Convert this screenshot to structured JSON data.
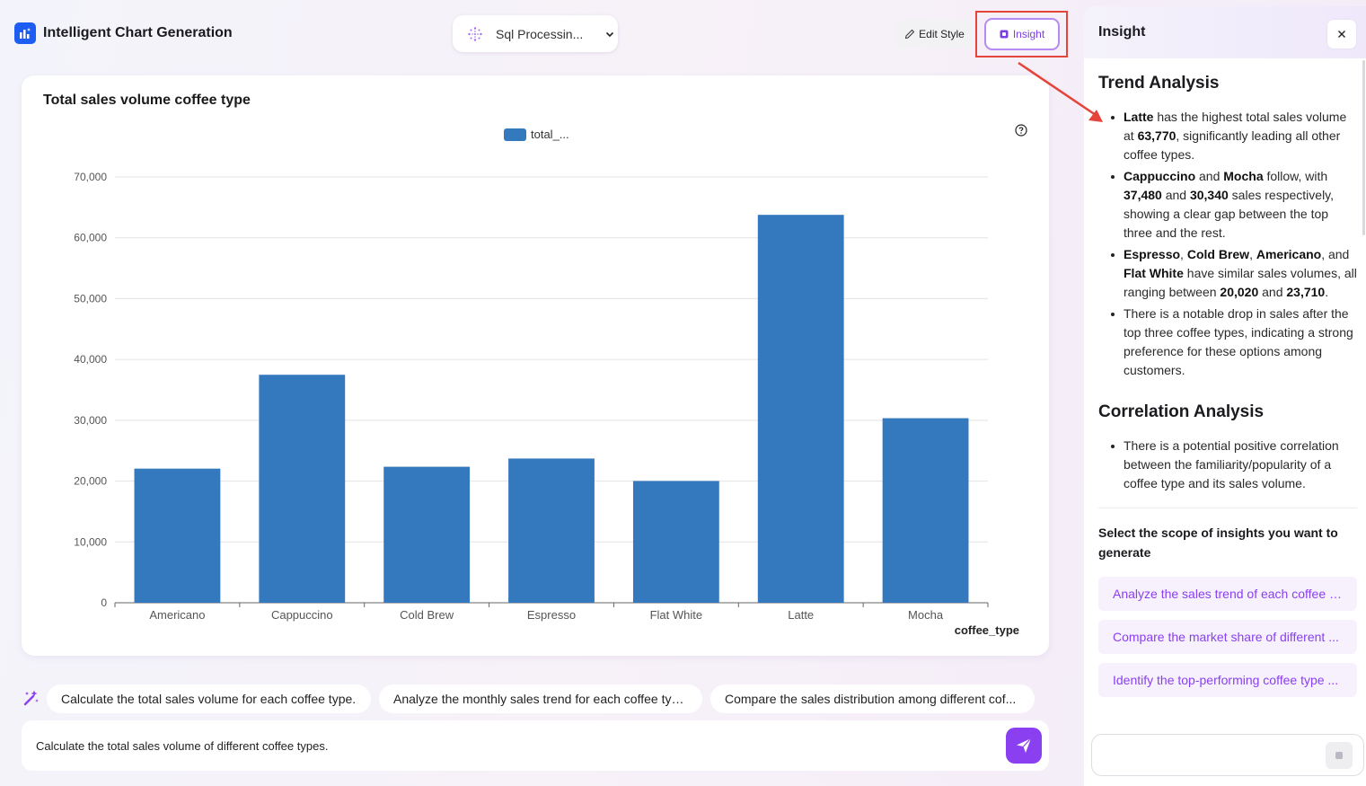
{
  "header": {
    "app_title": "Intelligent Chart Generation",
    "sql_status": "Sql Processin...",
    "edit_style_label": "Edit Style",
    "insight_label": "Insight"
  },
  "chart_data": {
    "type": "bar",
    "title": "Total sales volume coffee type",
    "legend": [
      "total_..."
    ],
    "categories": [
      "Americano",
      "Cappuccino",
      "Cold Brew",
      "Espresso",
      "Flat White",
      "Latte",
      "Mocha"
    ],
    "series": [
      {
        "name": "total_...",
        "values": [
          22050,
          37480,
          22360,
          23710,
          20020,
          63770,
          30340
        ]
      }
    ],
    "xlabel": "coffee_type",
    "ylabel": "",
    "ylim": [
      0,
      70000
    ],
    "yticks": [
      "0",
      "10,000",
      "20,000",
      "30,000",
      "40,000",
      "50,000",
      "60,000",
      "70,000"
    ],
    "grid": true,
    "legend_position": "top-center",
    "bar_color": "#3478be"
  },
  "suggestions": [
    "Calculate the total sales volume for each coffee type.",
    "Analyze the monthly sales trend for each coffee type.",
    "Compare the sales distribution among different cof..."
  ],
  "input": {
    "value": "Calculate the total sales volume of different coffee types."
  },
  "panel": {
    "title": "Insight",
    "trend_heading": "Trend Analysis",
    "trend_bullets": [
      [
        {
          "b": "Latte"
        },
        {
          "t": " has the highest total sales volume at "
        },
        {
          "b": "63,770"
        },
        {
          "t": ", significantly leading all other coffee types."
        }
      ],
      [
        {
          "b": "Cappuccino"
        },
        {
          "t": " and "
        },
        {
          "b": "Mocha"
        },
        {
          "t": " follow, with "
        },
        {
          "b": "37,480"
        },
        {
          "t": " and "
        },
        {
          "b": "30,340"
        },
        {
          "t": " sales respectively, showing a clear gap between the top three and the rest."
        }
      ],
      [
        {
          "b": "Espresso"
        },
        {
          "t": ", "
        },
        {
          "b": "Cold Brew"
        },
        {
          "t": ", "
        },
        {
          "b": "Americano"
        },
        {
          "t": ", and "
        },
        {
          "b": "Flat White"
        },
        {
          "t": " have similar sales volumes, all ranging between "
        },
        {
          "b": "20,020"
        },
        {
          "t": " and "
        },
        {
          "b": "23,710"
        },
        {
          "t": "."
        }
      ],
      [
        {
          "t": "There is a notable drop in sales after the top three coffee types, indicating a strong preference for these options among customers."
        }
      ]
    ],
    "correlation_heading": "Correlation Analysis",
    "correlation_bullets": [
      [
        {
          "t": "There is a potential positive correlation between the familiarity/popularity of a coffee type and its sales volume."
        }
      ]
    ],
    "scope_label": "Select the scope of insights you want to generate",
    "scope_options": [
      "Analyze the sales trend of each coffee t...",
      "Compare the market share of different ...",
      "Identify the top-performing coffee type ..."
    ]
  },
  "colors": {
    "accent": "#8a3ff0",
    "bar": "#3478be",
    "highlight_box": "#e5443a"
  }
}
